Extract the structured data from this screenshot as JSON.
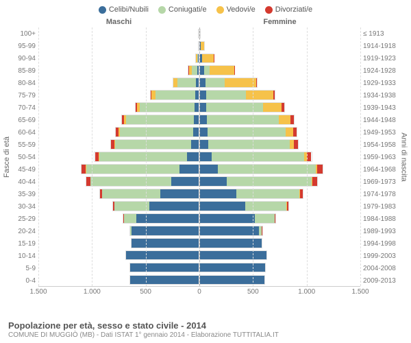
{
  "chart": {
    "type": "population-pyramid",
    "legend": [
      {
        "label": "Celibi/Nubili",
        "color": "#3b6e9b"
      },
      {
        "label": "Coniugati/e",
        "color": "#b6d7a8"
      },
      {
        "label": "Vedovi/e",
        "color": "#f6c24a"
      },
      {
        "label": "Divorziati/e",
        "color": "#d43a2f"
      }
    ],
    "header_male": "Maschi",
    "header_female": "Femmine",
    "y_left_title": "Fasce di età",
    "y_right_title": "Anni di nascita",
    "x_max": 1500,
    "x_ticks": [
      1500,
      1000,
      500,
      0,
      500,
      1000,
      1500
    ],
    "background_color": "#ffffff",
    "grid_color": "#dddddd",
    "age_bands": [
      {
        "age": "100+",
        "birth": "≤ 1913",
        "m": [
          1,
          0,
          2,
          0
        ],
        "f": [
          2,
          0,
          6,
          0
        ]
      },
      {
        "age": "95-99",
        "birth": "1914-1918",
        "m": [
          2,
          1,
          6,
          0
        ],
        "f": [
          9,
          1,
          42,
          0
        ]
      },
      {
        "age": "90-94",
        "birth": "1919-1923",
        "m": [
          10,
          8,
          20,
          0
        ],
        "f": [
          18,
          6,
          118,
          1
        ]
      },
      {
        "age": "85-89",
        "birth": "1924-1928",
        "m": [
          18,
          55,
          32,
          1
        ],
        "f": [
          40,
          52,
          240,
          3
        ]
      },
      {
        "age": "80-84",
        "birth": "1929-1933",
        "m": [
          28,
          180,
          40,
          3
        ],
        "f": [
          55,
          180,
          300,
          9
        ]
      },
      {
        "age": "75-79",
        "birth": "1934-1938",
        "m": [
          35,
          380,
          38,
          8
        ],
        "f": [
          58,
          380,
          255,
          16
        ]
      },
      {
        "age": "70-74",
        "birth": "1939-1943",
        "m": [
          42,
          520,
          28,
          12
        ],
        "f": [
          60,
          540,
          175,
          22
        ]
      },
      {
        "age": "65-69",
        "birth": "1944-1948",
        "m": [
          48,
          640,
          20,
          18
        ],
        "f": [
          65,
          680,
          110,
          30
        ]
      },
      {
        "age": "60-64",
        "birth": "1949-1953",
        "m": [
          55,
          690,
          14,
          24
        ],
        "f": [
          70,
          740,
          70,
          35
        ]
      },
      {
        "age": "55-59",
        "birth": "1954-1958",
        "m": [
          70,
          720,
          9,
          28
        ],
        "f": [
          78,
          770,
          40,
          38
        ]
      },
      {
        "age": "50-54",
        "birth": "1959-1963",
        "m": [
          110,
          830,
          6,
          34
        ],
        "f": [
          110,
          870,
          26,
          44
        ]
      },
      {
        "age": "45-49",
        "birth": "1964-1968",
        "m": [
          180,
          880,
          4,
          40
        ],
        "f": [
          170,
          920,
          16,
          48
        ]
      },
      {
        "age": "40-44",
        "birth": "1969-1973",
        "m": [
          260,
          760,
          2,
          36
        ],
        "f": [
          250,
          800,
          10,
          42
        ]
      },
      {
        "age": "35-39",
        "birth": "1974-1978",
        "m": [
          360,
          550,
          1,
          22
        ],
        "f": [
          340,
          600,
          5,
          28
        ]
      },
      {
        "age": "30-34",
        "birth": "1979-1983",
        "m": [
          470,
          330,
          0,
          10
        ],
        "f": [
          430,
          390,
          2,
          14
        ]
      },
      {
        "age": "25-29",
        "birth": "1984-1988",
        "m": [
          590,
          120,
          0,
          3
        ],
        "f": [
          520,
          190,
          1,
          5
        ]
      },
      {
        "age": "20-24",
        "birth": "1989-1993",
        "m": [
          640,
          12,
          0,
          0
        ],
        "f": [
          560,
          30,
          0,
          1
        ]
      },
      {
        "age": "15-19",
        "birth": "1994-1998",
        "m": [
          640,
          0,
          0,
          0
        ],
        "f": [
          590,
          0,
          0,
          0
        ]
      },
      {
        "age": "10-14",
        "birth": "1999-2003",
        "m": [
          690,
          0,
          0,
          0
        ],
        "f": [
          630,
          0,
          0,
          0
        ]
      },
      {
        "age": "5-9",
        "birth": "2004-2008",
        "m": [
          650,
          0,
          0,
          0
        ],
        "f": [
          620,
          0,
          0,
          0
        ]
      },
      {
        "age": "0-4",
        "birth": "2009-2013",
        "m": [
          650,
          0,
          0,
          0
        ],
        "f": [
          610,
          0,
          0,
          0
        ]
      }
    ],
    "footer_title": "Popolazione per età, sesso e stato civile - 2014",
    "footer_sub": "COMUNE DI MUGGIÒ (MB) - Dati ISTAT 1° gennaio 2014 - Elaborazione TUTTITALIA.IT"
  }
}
